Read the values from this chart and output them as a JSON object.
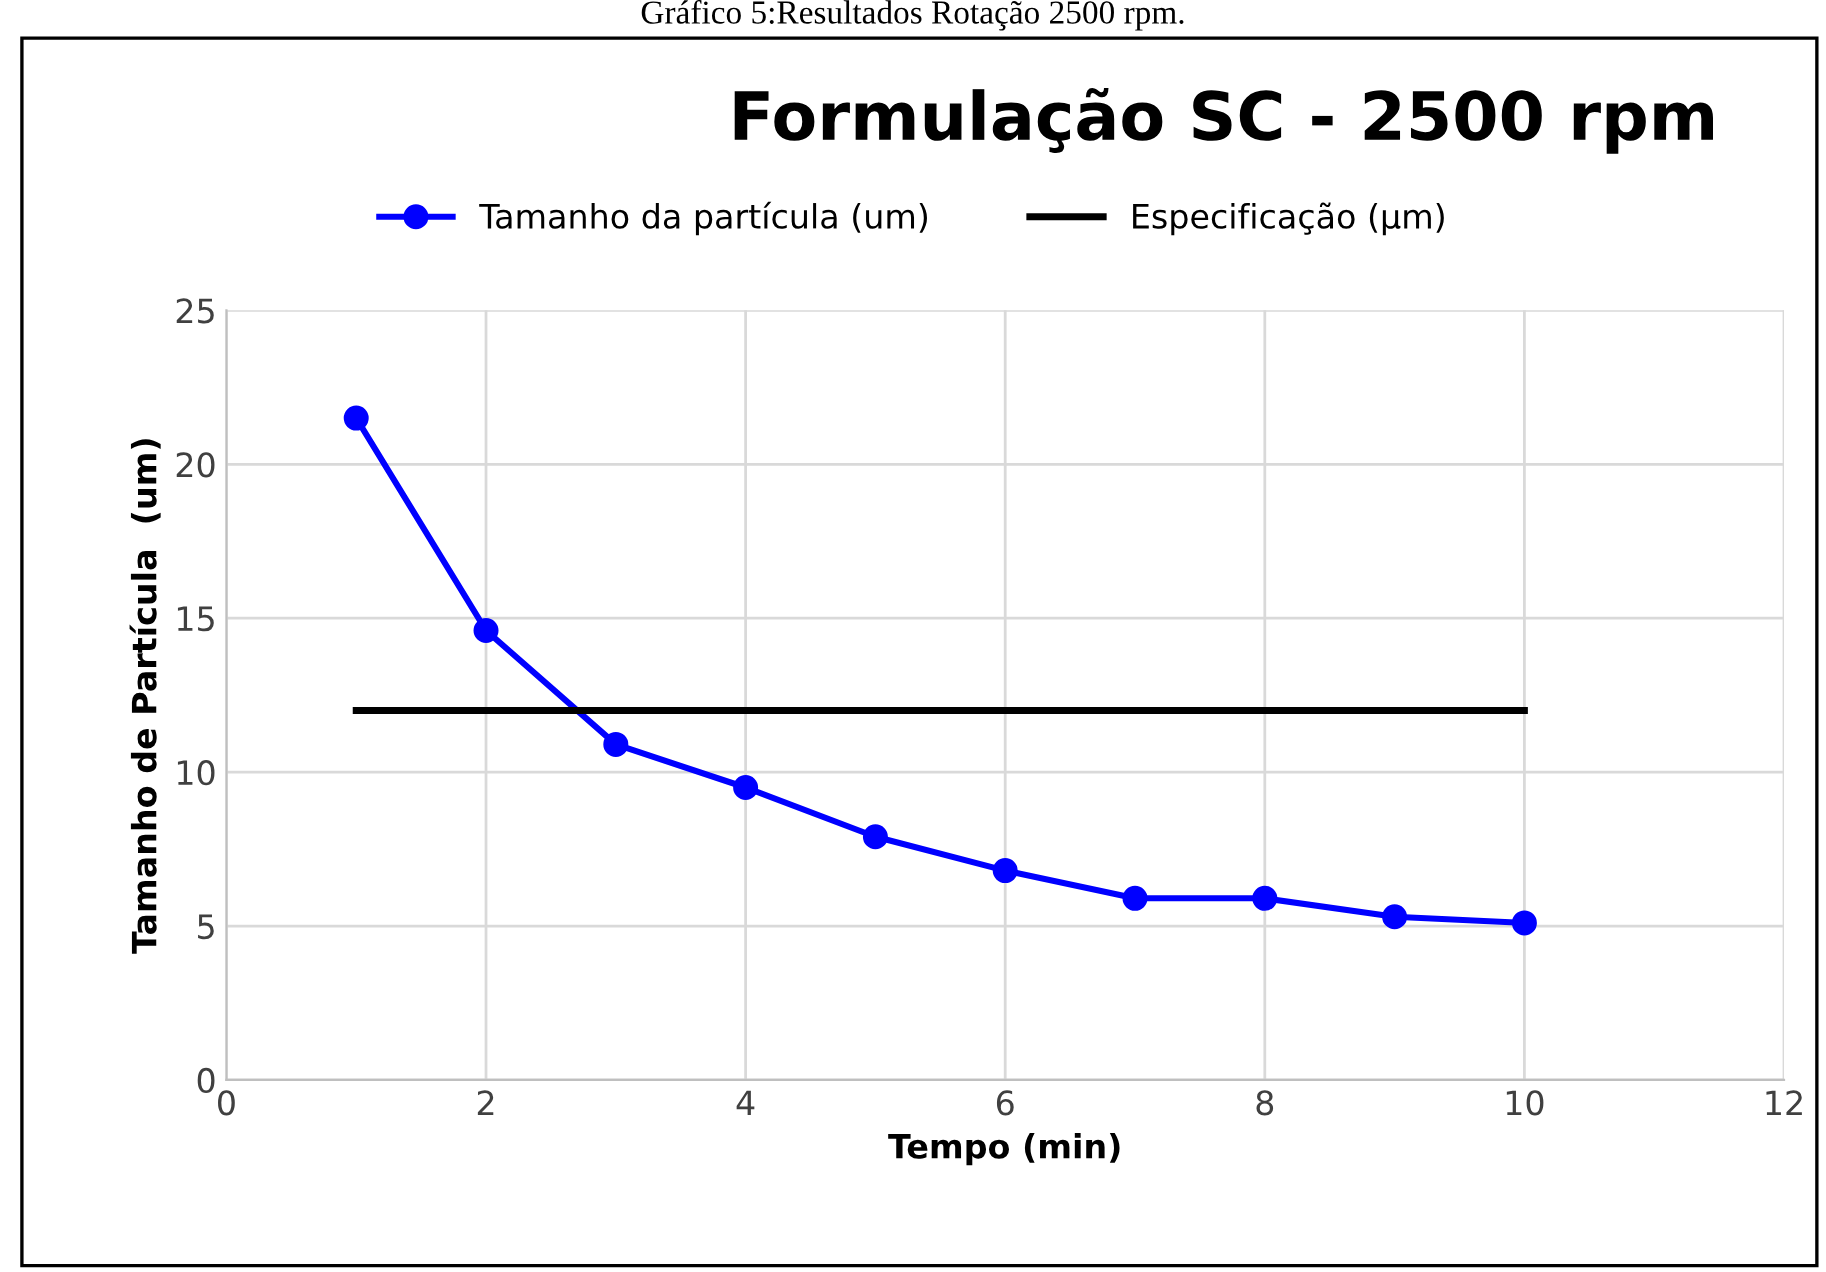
{
  "chart_data": {
    "type": "line",
    "title": "Formulação SC - 2500 rpm",
    "xlabel": "Tempo (min)",
    "ylabel": "Tamanho de Partícula  (um)",
    "annotations": [
      "Gráfico 5:Resultados Rotação 2500 rpm."
    ],
    "x": [
      1,
      2,
      3,
      4,
      5,
      6,
      7,
      8,
      9,
      10
    ],
    "series": [
      {
        "name": "Tamanho da partícula (um)",
        "color": "#0000ff",
        "marker": "circle",
        "values": [
          21.5,
          14.6,
          10.9,
          9.5,
          7.9,
          6.8,
          5.9,
          5.9,
          5.3,
          5.1
        ]
      },
      {
        "name": "Especificação (µm)",
        "color": "#000000",
        "marker": "none",
        "x": [
          1,
          10
        ],
        "values": [
          12,
          12
        ]
      }
    ],
    "xlim": [
      0,
      12
    ],
    "xticks": [
      0,
      2,
      4,
      6,
      8,
      10,
      12
    ],
    "ylim": [
      0,
      25
    ],
    "yticks": [
      0,
      5,
      10,
      15,
      20,
      25
    ],
    "grid": true,
    "legend": "top",
    "line_style": "solid"
  }
}
